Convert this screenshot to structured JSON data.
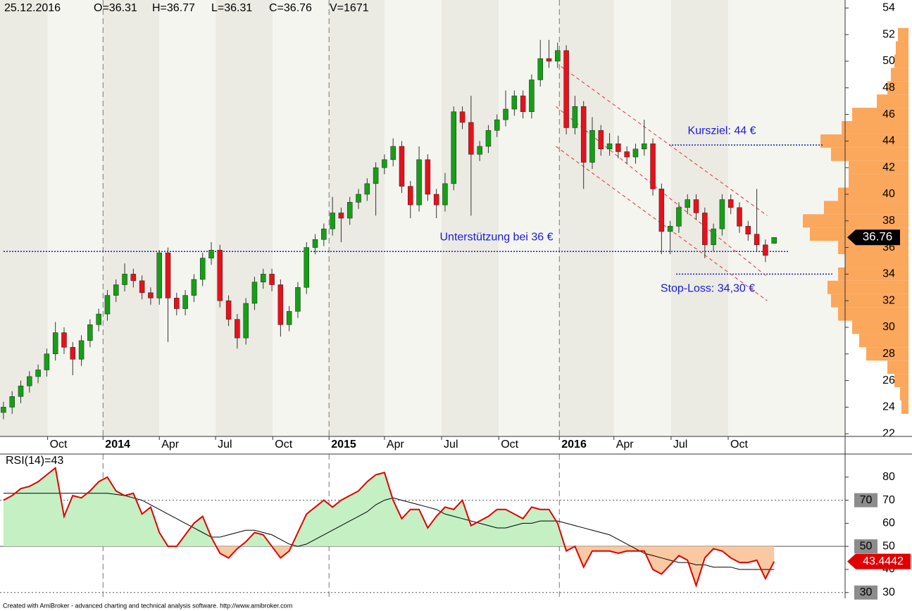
{
  "chart_data": [
    {
      "type": "candlestick",
      "title": "25.12.2016",
      "header": [
        "O=36.31",
        "H=36.77",
        "L=36.31",
        "C=36.76",
        "V=1671"
      ],
      "open": [
        23.6,
        24.0,
        24.8,
        25.6,
        26.3,
        26.8,
        28.0,
        29.6,
        28.5,
        27.6,
        29.0,
        30.2,
        31.0,
        32.4,
        33.2,
        34.0,
        33.5,
        32.6,
        32.2,
        35.6,
        32.2,
        31.4,
        32.4,
        33.6,
        35.2,
        35.8,
        32.0,
        30.6,
        29.2,
        31.8,
        33.4,
        34.0,
        33.2,
        30.2,
        31.2,
        33.0,
        36.0,
        36.6,
        37.4,
        38.6,
        38.2,
        39.4,
        40.0,
        40.8,
        42.0,
        42.6,
        43.6,
        40.6,
        39.2,
        42.6,
        40.0,
        39.2,
        40.8,
        46.2,
        45.4,
        43.0,
        43.6,
        44.8,
        45.6,
        46.4,
        47.4,
        46.2,
        48.6,
        50.2,
        50.0,
        50.8,
        45.0,
        46.6,
        42.4,
        44.8,
        43.4,
        43.8,
        43.2,
        42.8,
        43.4,
        43.8,
        40.4,
        37.2,
        37.6,
        39.0,
        39.6,
        38.6,
        36.2,
        37.4,
        39.6,
        39.0,
        37.6,
        37.0,
        36.2,
        36.31
      ],
      "high": [
        24.4,
        25.2,
        26.0,
        26.7,
        27.2,
        28.4,
        30.4,
        30.0,
        28.9,
        29.4,
        30.6,
        31.4,
        32.8,
        33.6,
        34.8,
        34.4,
        33.9,
        33.0,
        35.8,
        36.0,
        32.6,
        32.8,
        34.0,
        35.6,
        36.4,
        36.2,
        32.4,
        31.0,
        32.2,
        33.8,
        34.4,
        34.4,
        33.6,
        31.6,
        33.4,
        36.4,
        37.0,
        37.8,
        39.8,
        39.0,
        39.8,
        40.4,
        41.2,
        42.4,
        43.0,
        44.2,
        44.0,
        41.0,
        43.6,
        43.0,
        40.4,
        41.6,
        46.6,
        46.6,
        47.4,
        44.0,
        45.2,
        46.0,
        47.8,
        47.8,
        47.8,
        49.0,
        51.6,
        51.6,
        51.4,
        51.2,
        47.4,
        47.0,
        45.8,
        45.2,
        44.6,
        44.4,
        43.6,
        43.8,
        45.6,
        44.2,
        40.8,
        38.0,
        39.4,
        40.0,
        40.0,
        39.0,
        37.8,
        40.0,
        40.0,
        39.4,
        38.0,
        40.4,
        36.6,
        36.77
      ],
      "low": [
        23.1,
        23.5,
        24.3,
        25.1,
        25.8,
        26.3,
        27.5,
        28.0,
        26.4,
        27.1,
        28.5,
        29.7,
        30.5,
        31.9,
        32.7,
        33.0,
        32.1,
        31.7,
        31.7,
        28.9,
        30.9,
        30.9,
        31.9,
        33.1,
        34.7,
        31.5,
        30.1,
        28.4,
        28.7,
        31.3,
        32.9,
        32.7,
        29.3,
        29.7,
        30.7,
        32.5,
        35.5,
        36.1,
        36.9,
        36.4,
        37.7,
        38.9,
        39.5,
        38.4,
        41.5,
        42.1,
        40.1,
        38.2,
        38.7,
        39.5,
        38.2,
        38.7,
        40.3,
        44.9,
        38.4,
        42.5,
        43.1,
        44.3,
        45.1,
        45.9,
        45.7,
        45.7,
        48.1,
        49.5,
        49.5,
        44.5,
        44.5,
        40.4,
        41.9,
        42.9,
        42.9,
        42.7,
        42.3,
        42.3,
        42.9,
        39.9,
        35.5,
        35.5,
        37.1,
        38.5,
        38.1,
        35.2,
        35.7,
        36.9,
        38.5,
        37.1,
        36.5,
        35.7,
        34.9,
        36.31
      ],
      "close": [
        24.0,
        24.8,
        25.6,
        26.3,
        26.8,
        28.0,
        29.6,
        28.5,
        27.6,
        29.0,
        30.2,
        31.0,
        32.4,
        33.2,
        34.0,
        33.5,
        32.6,
        32.2,
        35.6,
        32.2,
        31.4,
        32.4,
        33.6,
        35.2,
        35.8,
        32.0,
        30.6,
        29.2,
        31.8,
        33.4,
        34.0,
        33.2,
        30.2,
        31.2,
        33.0,
        36.0,
        36.6,
        37.4,
        38.6,
        38.2,
        39.4,
        40.0,
        40.8,
        42.0,
        42.6,
        43.6,
        40.6,
        39.2,
        42.6,
        40.0,
        39.2,
        40.8,
        46.2,
        45.4,
        43.0,
        43.6,
        44.8,
        45.6,
        46.4,
        47.4,
        46.2,
        48.6,
        50.2,
        50.0,
        50.8,
        45.0,
        46.6,
        42.4,
        44.8,
        43.4,
        43.8,
        43.2,
        42.8,
        43.4,
        43.8,
        40.4,
        37.2,
        37.6,
        39.0,
        39.6,
        38.6,
        36.2,
        37.4,
        39.6,
        39.0,
        37.6,
        37.0,
        36.2,
        35.4,
        36.76
      ],
      "up_color": "#14a014",
      "down_color": "#e8101a",
      "xlim": [
        -0.4,
        97.2
      ],
      "xticks": [
        {
          "value": 5.1,
          "label": "Oct"
        },
        {
          "value": 11.5,
          "label": "2014"
        },
        {
          "value": 18.0,
          "label": "Apr"
        },
        {
          "value": 24.5,
          "label": "Jul"
        },
        {
          "value": 31.1,
          "label": "Oct"
        },
        {
          "value": 37.6,
          "label": "2015"
        },
        {
          "value": 44.0,
          "label": "Apr"
        },
        {
          "value": 50.6,
          "label": "Jul"
        },
        {
          "value": 57.2,
          "label": "Oct"
        },
        {
          "value": 64.2,
          "label": "2016"
        },
        {
          "value": 70.5,
          "label": "Apr"
        },
        {
          "value": 77.1,
          "label": "Jul"
        },
        {
          "value": 83.7,
          "label": "Oct"
        }
      ],
      "ylim": [
        21.8,
        54.6
      ],
      "yticks": [
        22,
        24,
        26,
        28,
        30,
        32,
        34,
        36,
        38,
        40,
        42,
        44,
        46,
        48,
        50,
        52,
        54
      ],
      "annotations": [
        {
          "text": "Kursziel: 44 €",
          "value": 43.7
        },
        {
          "text": "Unterstützung bei 36 €",
          "value": 35.7
        },
        {
          "text": "Stop-Loss: 34,30 €",
          "value": 34.0
        }
      ],
      "trendlines": [
        {
          "x": [
            64.4,
            88.2
          ],
          "y": [
            49.6,
            38.4
          ]
        },
        {
          "x": [
            63.8,
            88.2
          ],
          "y": [
            46.6,
            33.8
          ]
        },
        {
          "x": [
            63.8,
            88.2
          ],
          "y": [
            43.6,
            32.0
          ]
        }
      ],
      "volume_profile": {
        "color": "#fba75c",
        "bins": [
          23.5,
          24.5,
          25.5,
          26.5,
          27.5,
          28.5,
          29.5,
          30.5,
          31.5,
          32.5,
          33.5,
          34.5,
          35.5,
          36.5,
          37.5,
          38.5,
          39.5,
          40.5,
          41.5,
          42.5,
          43.5,
          44.5,
          45.5,
          46.5,
          47.5,
          48.5,
          49.5,
          50.5,
          51.5,
          52.5
        ],
        "values": [
          10,
          12,
          20,
          30,
          60,
          70,
          80,
          100,
          110,
          115,
          100,
          90,
          100,
          140,
          150,
          120,
          100,
          85,
          85,
          110,
          125,
          95,
          80,
          45,
          30,
          25,
          20,
          18,
          15
        ]
      }
    },
    {
      "type": "line",
      "title": "RSI(14)=43",
      "series": [
        {
          "color": "#e00000",
          "values": [
            70,
            72,
            75,
            76,
            78,
            81,
            84,
            63,
            72,
            71,
            74,
            78,
            80,
            74,
            72,
            73,
            64,
            67,
            56,
            50,
            50,
            55,
            60,
            63,
            54,
            47,
            45,
            49,
            52,
            56,
            55,
            50,
            45,
            48,
            56,
            64,
            67,
            70,
            67,
            70,
            72,
            74,
            78,
            81,
            82,
            70,
            62,
            66,
            66,
            58,
            63,
            67,
            66,
            70,
            59,
            61,
            63,
            66,
            66,
            64,
            62,
            67,
            66,
            66,
            60,
            48,
            50,
            41,
            48,
            48,
            48,
            47,
            48,
            48,
            48,
            40,
            38,
            42,
            46,
            44,
            33,
            45,
            49,
            48,
            45,
            43,
            43,
            44,
            36,
            43.4442
          ]
        },
        {
          "color": "#000000",
          "values": [
            73,
            73,
            73,
            73,
            73,
            73,
            73,
            73,
            73,
            73,
            73,
            73,
            73,
            72.5,
            72,
            71,
            70,
            68,
            66,
            64,
            62,
            60,
            58,
            56,
            54,
            54,
            55,
            56,
            57,
            57,
            56,
            55,
            53,
            51,
            50,
            51,
            53,
            55,
            57,
            59,
            61,
            63,
            65,
            68,
            70,
            71,
            70,
            69,
            68,
            67,
            66,
            64,
            63,
            62,
            61,
            60,
            59,
            58,
            58,
            59,
            60,
            60,
            61,
            61,
            61,
            60,
            59,
            58,
            57,
            56,
            55,
            53,
            51,
            49,
            47,
            46,
            45,
            44,
            43,
            43,
            42,
            42,
            41,
            41,
            41,
            40,
            40,
            40,
            40,
            40
          ]
        }
      ],
      "xlim": [
        -0.4,
        97.2
      ],
      "ylim": [
        22,
        90
      ],
      "yticks": [
        30,
        40,
        50,
        60,
        70,
        80
      ],
      "levels": [
        70,
        50,
        30
      ]
    }
  ],
  "footer": "Created with AmiBroker - advanced charting and technical analysis software. http://www.amibroker.com"
}
